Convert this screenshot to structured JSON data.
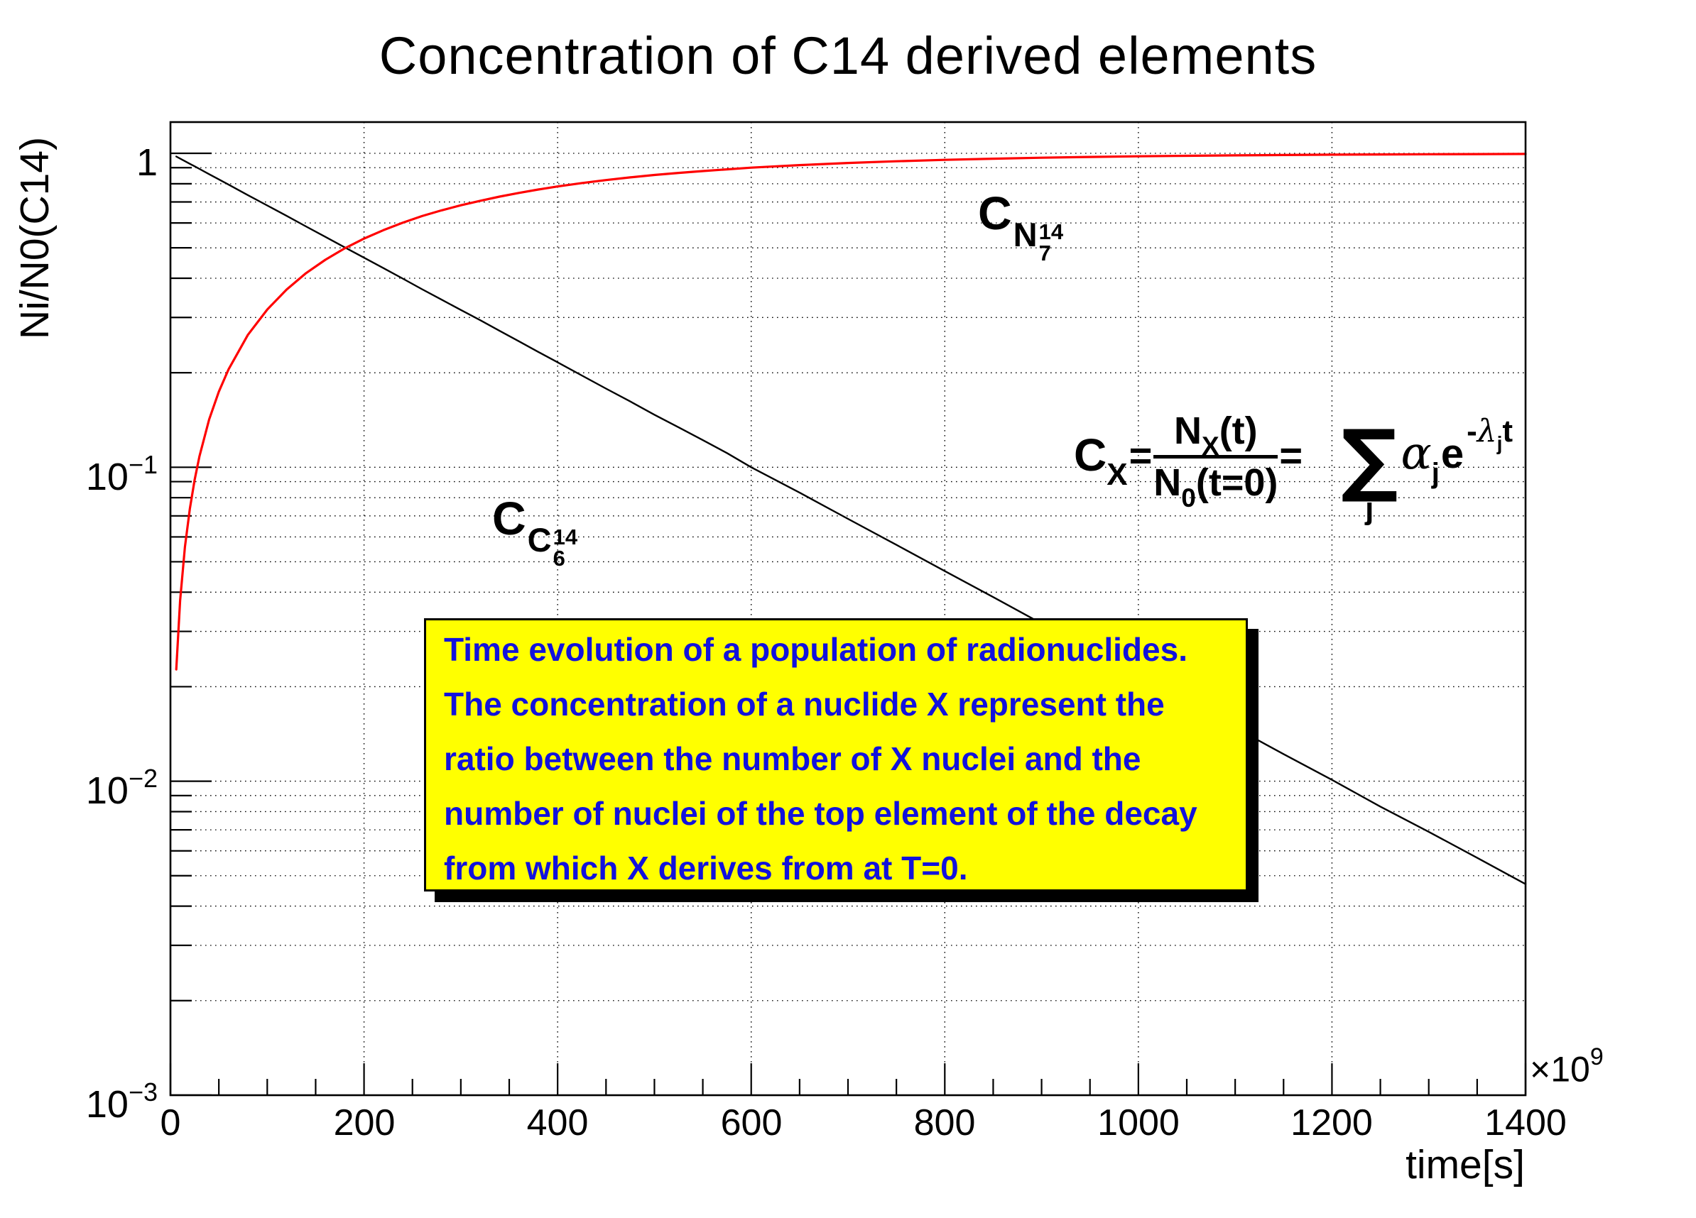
{
  "title": "Concentration of C14 derived elements",
  "axes": {
    "x": {
      "title": "time[s]",
      "multiplier_base": "×10",
      "multiplier_exp": "9",
      "tick_labels": [
        "0",
        "200",
        "400",
        "600",
        "800",
        "1000",
        "1200",
        "1400"
      ],
      "major_step": 200,
      "minor_step": 50
    },
    "y": {
      "title": "Ni/N0(C14)",
      "scale": "log",
      "tick_labels": [
        {
          "base": "1",
          "exp": ""
        },
        {
          "base": "10",
          "exp": "−1"
        },
        {
          "base": "10",
          "exp": "−2"
        },
        {
          "base": "10",
          "exp": "−3"
        }
      ]
    }
  },
  "curve_labels": {
    "n14": {
      "main": "C",
      "sub": "N",
      "mass": "14",
      "atomic": "7"
    },
    "c14": {
      "main": "C",
      "sub": "C",
      "mass": "14",
      "atomic": "6"
    }
  },
  "formula": {
    "lhs": "C",
    "lhs_sub": "X",
    "eq1": "=",
    "num_main": "N",
    "num_sub": "X",
    "num_rest": "(t)",
    "den_main": "N",
    "den_sub": "0",
    "den_rest": "(t=0)",
    "eq2": "=",
    "sum": "∑",
    "sum_index": "j",
    "coef": "α",
    "coef_sub": "j",
    "base": "e",
    "exp_minus": "-",
    "exp_lambda": "λ",
    "exp_lambda_sub": "j",
    "exp_t": "t"
  },
  "infobox": {
    "fill": "#ffff00",
    "text_color": "#1212dc",
    "lines": [
      "Time evolution of a population of radionuclides.",
      "The concentration of a nuclide X represent the",
      "ratio between the number of X nuclei and the",
      "number of nuclei of the top element of the decay",
      "from which X derives from at T=0."
    ]
  },
  "chart_data": {
    "type": "line",
    "title": "Concentration of C14 derived elements",
    "xlabel": "time[s]",
    "x_unit_multiplier": "1e9 s",
    "ylabel": "Ni/N0(C14)",
    "y_scale": "log",
    "x_range": [
      0,
      1400
    ],
    "y_range": [
      0.001,
      1.26
    ],
    "grid": "dotted horizontal lines at every log tick, dotted vertical lines at x major ticks",
    "legend_position": "none",
    "x": [
      6,
      10,
      15,
      20,
      25,
      30,
      40,
      50,
      60,
      80,
      100,
      120,
      140,
      160,
      180,
      200,
      220,
      240,
      260,
      280,
      300,
      320,
      340,
      360,
      380,
      400,
      425,
      450,
      475,
      500,
      525,
      550,
      575,
      600,
      650,
      700,
      750,
      800,
      850,
      900,
      950,
      1000,
      1050,
      1100,
      1150,
      1200,
      1250,
      1300,
      1350,
      1400
    ],
    "series": [
      {
        "name": "C14 (C of C-14, decaying)",
        "color": "#000000",
        "width": 2.4,
        "values": [
          0.977,
          0.962,
          0.944,
          0.926,
          0.909,
          0.892,
          0.858,
          0.826,
          0.795,
          0.736,
          0.682,
          0.632,
          0.585,
          0.542,
          0.502,
          0.465,
          0.431,
          0.399,
          0.369,
          0.342,
          0.317,
          0.294,
          0.272,
          0.252,
          0.233,
          0.216,
          0.196,
          0.178,
          0.162,
          0.147,
          0.134,
          0.122,
          0.111,
          0.1,
          0.083,
          0.0685,
          0.0566,
          0.0467,
          0.0386,
          0.0318,
          0.0263,
          0.0217,
          0.0179,
          0.0148,
          0.0122,
          0.0101,
          0.0083,
          0.0069,
          0.0057,
          0.0047
        ]
      },
      {
        "name": "N14 (C of N-14, growing)",
        "color": "#ff0000",
        "width": 3.2,
        "values": [
          0.0227,
          0.0376,
          0.0558,
          0.0737,
          0.0913,
          0.1085,
          0.142,
          0.174,
          0.205,
          0.264,
          0.318,
          0.368,
          0.415,
          0.458,
          0.498,
          0.535,
          0.569,
          0.601,
          0.631,
          0.658,
          0.683,
          0.706,
          0.728,
          0.748,
          0.767,
          0.784,
          0.804,
          0.822,
          0.838,
          0.853,
          0.866,
          0.878,
          0.889,
          0.9,
          0.917,
          0.9315,
          0.9434,
          0.9533,
          0.9614,
          0.9682,
          0.9737,
          0.9783,
          0.9821,
          0.9852,
          0.9878,
          0.9899,
          0.9917,
          0.9931,
          0.9943,
          0.9953
        ]
      }
    ],
    "annotations": [
      "C_{N_7^14} label on rising red curve",
      "C_{C_6^14} label on decaying black curve",
      "C_X = N_X(t) / N_0(t=0) = Sum_j alpha_j e^(-lambda_j t)"
    ]
  }
}
